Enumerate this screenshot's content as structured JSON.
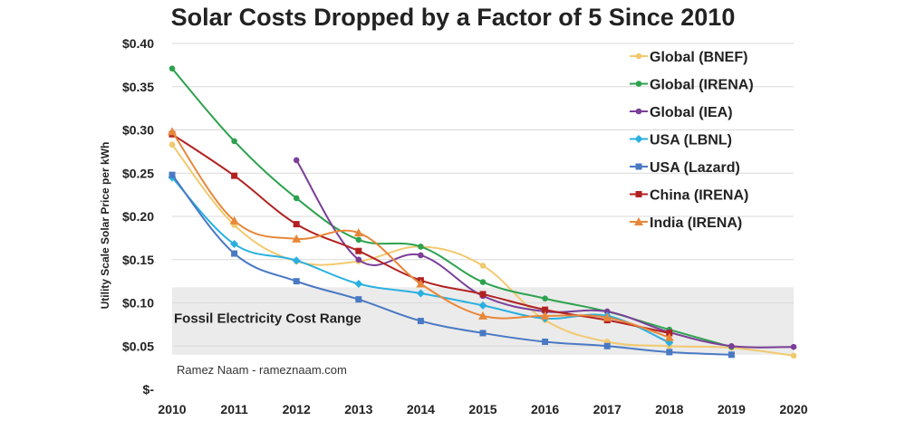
{
  "chart_data": {
    "type": "line",
    "title": "Solar Costs Dropped by a Factor of 5 Since 2010",
    "ylabel": "Utility Scale Solar Price per kWh",
    "xlabel": "",
    "x": [
      2010,
      2011,
      2012,
      2013,
      2014,
      2015,
      2016,
      2017,
      2018,
      2019,
      2020
    ],
    "xlim": [
      2010,
      2020
    ],
    "ylim": [
      0,
      0.4
    ],
    "ytick_labels": [
      "$-",
      "$0.05",
      "$0.10",
      "$0.15",
      "$0.20",
      "$0.25",
      "$0.30",
      "$0.35",
      "$0.40"
    ],
    "grid": true,
    "legend_position": "top-right",
    "shaded_band": {
      "label": "Fossil Electricity Cost Range",
      "y_range": [
        0.04,
        0.118
      ],
      "color": "#ebebeb"
    },
    "annotation": "Ramez Naam - rameznaam.com",
    "series": [
      {
        "name": "Global (BNEF)",
        "color": "#f2c96e",
        "marker": "circle",
        "points": [
          [
            2010,
            0.283
          ],
          [
            2011,
            0.19
          ],
          [
            2012,
            0.148
          ],
          [
            2013,
            0.148
          ],
          [
            2014,
            0.165
          ],
          [
            2015,
            0.143
          ],
          [
            2016,
            0.08
          ],
          [
            2017,
            0.055
          ],
          [
            2018,
            0.05
          ],
          [
            2019,
            0.048
          ],
          [
            2020,
            0.039
          ]
        ]
      },
      {
        "name": "Global (IRENA)",
        "color": "#2da24e",
        "marker": "circle",
        "points": [
          [
            2010,
            0.371
          ],
          [
            2011,
            0.287
          ],
          [
            2012,
            0.221
          ],
          [
            2013,
            0.173
          ],
          [
            2014,
            0.165
          ],
          [
            2015,
            0.124
          ],
          [
            2016,
            0.105
          ],
          [
            2017,
            0.09
          ],
          [
            2018,
            0.069
          ],
          [
            2019,
            0.049
          ]
        ]
      },
      {
        "name": "Global (IEA)",
        "color": "#7b3f98",
        "marker": "circle",
        "points": [
          [
            2012,
            0.265
          ],
          [
            2013,
            0.15
          ],
          [
            2014,
            0.155
          ],
          [
            2015,
            0.108
          ],
          [
            2016,
            0.09
          ],
          [
            2017,
            0.09
          ],
          [
            2018,
            0.066
          ],
          [
            2019,
            0.05
          ],
          [
            2020,
            0.049
          ]
        ]
      },
      {
        "name": "USA (LBNL)",
        "color": "#2ab0e0",
        "marker": "diamond",
        "points": [
          [
            2010,
            0.245
          ],
          [
            2011,
            0.168
          ],
          [
            2012,
            0.149
          ],
          [
            2013,
            0.122
          ],
          [
            2014,
            0.111
          ],
          [
            2015,
            0.097
          ],
          [
            2016,
            0.082
          ],
          [
            2017,
            0.085
          ],
          [
            2018,
            0.054
          ]
        ]
      },
      {
        "name": "USA (Lazard)",
        "color": "#4a79c4",
        "marker": "square",
        "points": [
          [
            2010,
            0.248
          ],
          [
            2011,
            0.157
          ],
          [
            2012,
            0.125
          ],
          [
            2013,
            0.104
          ],
          [
            2014,
            0.079
          ],
          [
            2015,
            0.065
          ],
          [
            2016,
            0.055
          ],
          [
            2017,
            0.05
          ],
          [
            2018,
            0.043
          ],
          [
            2019,
            0.04
          ]
        ]
      },
      {
        "name": "China (IRENA)",
        "color": "#b22222",
        "marker": "square",
        "points": [
          [
            2010,
            0.295
          ],
          [
            2011,
            0.247
          ],
          [
            2012,
            0.191
          ],
          [
            2013,
            0.16
          ],
          [
            2014,
            0.126
          ],
          [
            2015,
            0.11
          ],
          [
            2016,
            0.092
          ],
          [
            2017,
            0.08
          ],
          [
            2018,
            0.065
          ]
        ]
      },
      {
        "name": "India (IRENA)",
        "color": "#e8873a",
        "marker": "triangle",
        "points": [
          [
            2010,
            0.298
          ],
          [
            2011,
            0.195
          ],
          [
            2012,
            0.174
          ],
          [
            2013,
            0.181
          ],
          [
            2014,
            0.122
          ],
          [
            2015,
            0.085
          ],
          [
            2016,
            0.085
          ],
          [
            2017,
            0.083
          ],
          [
            2018,
            0.06
          ]
        ]
      }
    ]
  }
}
